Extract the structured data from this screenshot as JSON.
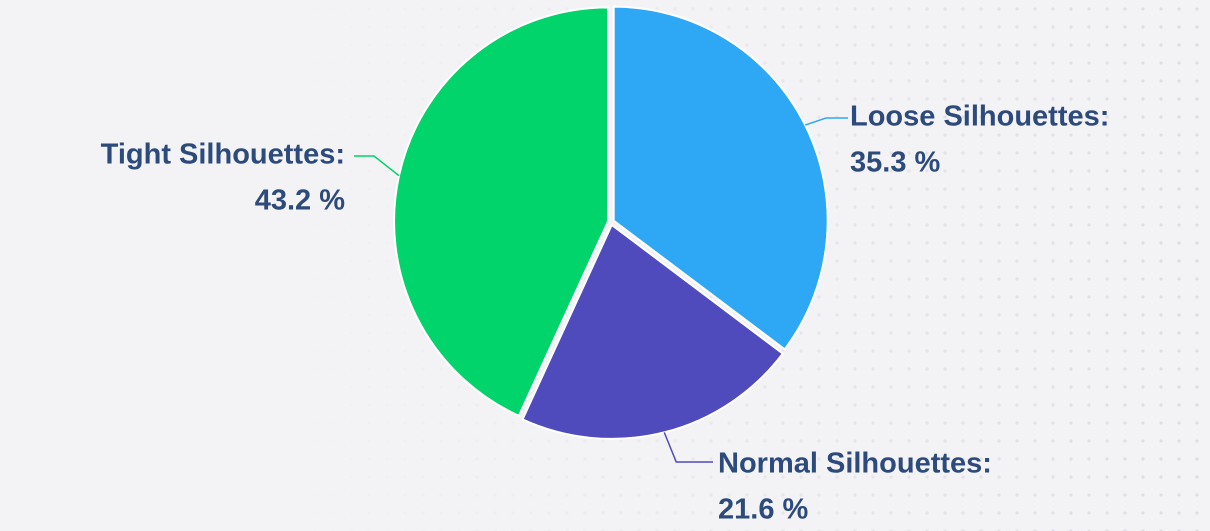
{
  "chart_data": {
    "type": "pie",
    "categories": [
      "Loose Silhouettes:",
      "Normal Silhouettes:",
      "Tight Silhouettes:"
    ],
    "values": [
      35.3,
      21.6,
      43.2
    ],
    "value_labels": [
      "35.3 %",
      "21.6 %",
      "43.2 %"
    ],
    "colors": [
      "#2ea8f5",
      "#4f4bbd",
      "#00d46a"
    ]
  }
}
